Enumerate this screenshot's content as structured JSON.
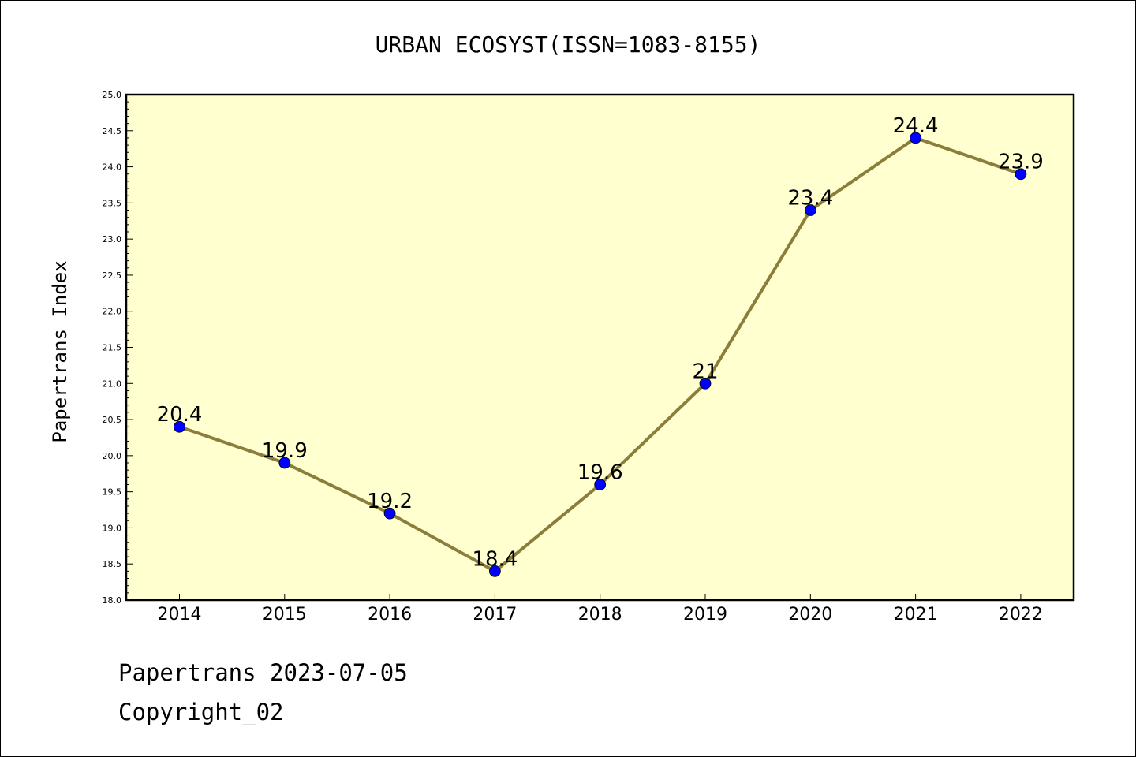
{
  "chart_data": {
    "type": "line",
    "title": "URBAN ECOSYST(ISSN=1083-8155)",
    "xlabel": "",
    "ylabel": "Papertrans Index",
    "categories": [
      "2014",
      "2015",
      "2016",
      "2017",
      "2018",
      "2019",
      "2020",
      "2021",
      "2022"
    ],
    "series": [
      {
        "values": [
          20.4,
          19.9,
          19.2,
          18.4,
          19.6,
          21.0,
          23.4,
          24.4,
          23.9
        ]
      }
    ],
    "data_labels": [
      "20.4",
      "19.9",
      "19.2",
      "18.4",
      "19.6",
      "21",
      "23.4",
      "24.4",
      "23.9"
    ],
    "ylim": [
      18.0,
      25.0
    ],
    "yticks": [
      "18.0",
      "18.5",
      "19.0",
      "19.5",
      "20.0",
      "20.5",
      "21.0",
      "21.5",
      "22.0",
      "22.5",
      "23.0",
      "23.5",
      "24.0",
      "24.5",
      "25.0"
    ],
    "grid": false,
    "colors": {
      "plot_background": "#ffffd0",
      "line": "#8b7d3a",
      "marker": "#0000ff"
    }
  },
  "footer": {
    "line1": "Papertrans 2023-07-05",
    "line2": "Copyright_02"
  }
}
